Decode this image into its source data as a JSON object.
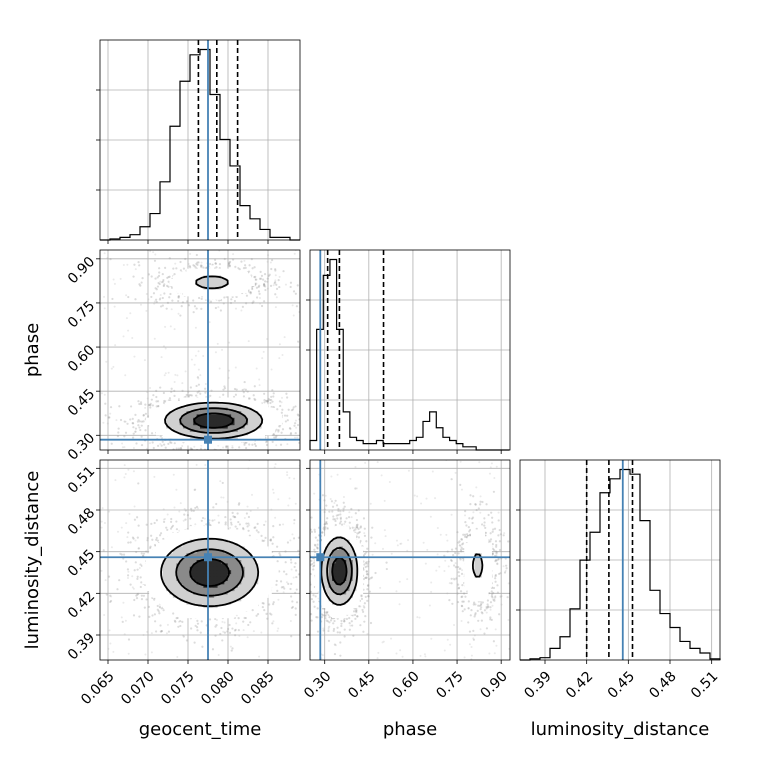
{
  "chart_data": {
    "type": "corner",
    "parameters": [
      "geocent_time",
      "phase",
      "luminosity_distance"
    ],
    "truth_color": "#4682b4",
    "truths": {
      "geocent_time": 0.0775,
      "phase": 0.285,
      "luminosity_distance": 0.446
    },
    "ranges": {
      "geocent_time": [
        0.064,
        0.089
      ],
      "phase": [
        0.25,
        0.93
      ],
      "luminosity_distance": [
        0.372,
        0.516
      ]
    },
    "ticks": {
      "geocent_time": [
        "0.065",
        "0.070",
        "0.075",
        "0.080",
        "0.085"
      ],
      "phase": [
        "0.30",
        "0.45",
        "0.60",
        "0.75",
        "0.90"
      ],
      "luminosity_distance": [
        "0.39",
        "0.42",
        "0.45",
        "0.48",
        "0.51"
      ]
    },
    "axis_labels": {
      "geocent_time": "geocent_time",
      "phase": "phase",
      "luminosity_distance": "luminosity_distance"
    },
    "quantiles": {
      "geocent_time": [
        0.0763,
        0.0786,
        0.0812
      ],
      "phase": [
        0.31,
        0.35,
        0.5
      ],
      "luminosity_distance": [
        0.42,
        0.436,
        0.453
      ]
    },
    "histograms": {
      "geocent_time": {
        "edges_start": 0.064,
        "bin_width": 0.00125,
        "counts": [
          0,
          0.4,
          1,
          2,
          5,
          10,
          22,
          43,
          60,
          70,
          72,
          55,
          38,
          28,
          13,
          8,
          4,
          1,
          1,
          0
        ]
      },
      "phase": {
        "edges_start": 0.25,
        "bin_width": 0.0226,
        "counts": [
          3,
          38,
          55,
          60,
          38,
          12,
          4,
          3,
          2,
          2,
          3,
          2,
          2,
          2,
          2,
          3,
          4,
          9,
          12,
          7,
          4,
          3,
          2,
          1,
          1,
          0,
          0,
          0,
          0,
          0
        ]
      },
      "luminosity_distance": {
        "edges_start": 0.372,
        "bin_width": 0.0072,
        "counts": [
          0,
          0.5,
          1,
          5,
          10,
          22,
          43,
          55,
          72,
          78,
          82,
          80,
          60,
          30,
          20,
          14,
          8,
          5,
          3,
          0.5
        ]
      }
    },
    "density_peaks": {
      "phase_vs_geocent_time": [
        {
          "x": 0.0782,
          "y": 0.35,
          "sx": 0.003,
          "sy": 0.03,
          "w": 1.0
        },
        {
          "x": 0.078,
          "y": 0.82,
          "sx": 0.0025,
          "sy": 0.025,
          "w": 0.18
        }
      ],
      "luminosity_distance_vs_geocent_time": [
        {
          "x": 0.0777,
          "y": 0.435,
          "sx": 0.003,
          "sy": 0.012,
          "w": 1.0
        }
      ],
      "luminosity_distance_vs_phase": [
        {
          "x": 0.35,
          "y": 0.436,
          "sx": 0.03,
          "sy": 0.012,
          "w": 1.0
        },
        {
          "x": 0.82,
          "y": 0.44,
          "sx": 0.025,
          "sy": 0.013,
          "w": 0.16
        }
      ]
    },
    "legend": "none"
  }
}
